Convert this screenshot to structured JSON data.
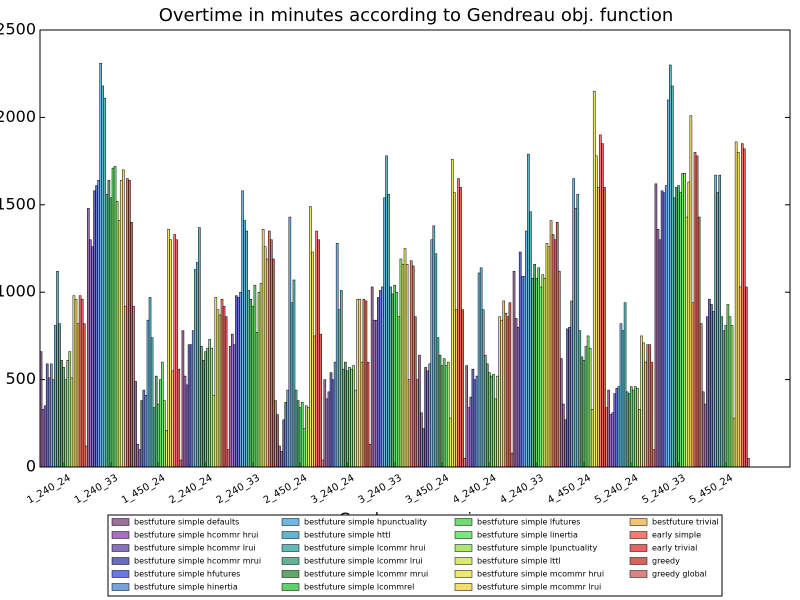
{
  "chart_data": {
    "type": "bar",
    "title": "Overtime in minutes according to Gendreau obj. function",
    "x_label": "Gendreau scenario",
    "categories": [
      "1_240_24",
      "1_240_33",
      "1_450_24",
      "2_240_24",
      "2_240_33",
      "2_450_24",
      "3_240_24",
      "3_240_33",
      "3_450_24",
      "4_240_24",
      "4_240_33",
      "4_450_24",
      "5_240_24",
      "5_240_33",
      "5_450_24"
    ],
    "ylim": [
      0,
      2500
    ],
    "yticks": [
      0,
      500,
      1000,
      1500,
      2000,
      2500
    ],
    "series": [
      {
        "name": "bestfuture simple defaults",
        "color": "#7b3f7b",
        "values": [
          660,
          1480,
          490,
          780,
          690,
          300,
          500,
          1030,
          640,
          580,
          1120,
          620,
          440,
          1620,
          430
        ]
      },
      {
        "name": "bestfuture simple hcommr hrui",
        "color": "#8e3ea8",
        "values": [
          330,
          1300,
          130,
          520,
          760,
          120,
          390,
          840,
          310,
          340,
          850,
          360,
          300,
          1360,
          360
        ]
      },
      {
        "name": "bestfuture simple hcommr lrui",
        "color": "#6240a8",
        "values": [
          350,
          1260,
          100,
          470,
          700,
          90,
          430,
          840,
          220,
          400,
          800,
          270,
          310,
          1300,
          860
        ]
      },
      {
        "name": "bestfuture simple hcommr mrui",
        "color": "#3a3aa8",
        "values": [
          590,
          1580,
          380,
          700,
          980,
          270,
          540,
          970,
          570,
          560,
          1230,
          790,
          420,
          1580,
          960
        ]
      },
      {
        "name": "bestfuture simple hfutures",
        "color": "#3a4adc",
        "values": [
          510,
          1610,
          440,
          700,
          970,
          370,
          500,
          1010,
          550,
          500,
          1090,
          800,
          450,
          1570,
          930
        ]
      },
      {
        "name": "bestfuture simple hinertia",
        "color": "#4a84d0",
        "values": [
          590,
          1640,
          410,
          780,
          1000,
          440,
          600,
          1030,
          590,
          520,
          1090,
          950,
          460,
          1610,
          890
        ]
      },
      {
        "name": "bestfuture simple hpunctuality",
        "color": "#3fa0dc",
        "values": [
          500,
          2310,
          840,
          1130,
          1580,
          1430,
          1280,
          1540,
          1300,
          1110,
          1350,
          1650,
          820,
          2100,
          1670
        ]
      },
      {
        "name": "bestfuture simple httl",
        "color": "#2f9cbc",
        "values": [
          810,
          2180,
          970,
          1170,
          1410,
          940,
          900,
          1780,
          1380,
          1140,
          1790,
          1480,
          780,
          2300,
          1570
        ]
      },
      {
        "name": "bestfuture simple lcommr hrui",
        "color": "#2fa0a0",
        "values": [
          1120,
          2110,
          740,
          1370,
          1350,
          1070,
          1010,
          1560,
          1220,
          900,
          1460,
          1560,
          940,
          2180,
          1670
        ]
      },
      {
        "name": "bestfuture simple lcommr lrui",
        "color": "#2f9a78",
        "values": [
          820,
          1560,
          340,
          690,
          1010,
          440,
          560,
          1030,
          740,
          640,
          1080,
          780,
          430,
          1540,
          860
        ]
      },
      {
        "name": "bestfuture simple lcommr mrui",
        "color": "#2f8a3a",
        "values": [
          610,
          1640,
          520,
          610,
          960,
          380,
          600,
          990,
          640,
          590,
          1160,
          630,
          420,
          1600,
          780
        ]
      },
      {
        "name": "bestfuture simple lcommrel",
        "color": "#2fc040",
        "values": [
          570,
          1540,
          360,
          660,
          920,
          340,
          550,
          1040,
          580,
          540,
          1080,
          610,
          460,
          1610,
          810
        ]
      },
      {
        "name": "bestfuture simple lfutures",
        "color": "#3ed03e",
        "values": [
          500,
          1710,
          500,
          680,
          1040,
          370,
          570,
          1000,
          620,
          520,
          1140,
          690,
          440,
          1570,
          930
        ]
      },
      {
        "name": "bestfuture simple linertia",
        "color": "#4ee050",
        "values": [
          610,
          1720,
          600,
          730,
          770,
          220,
          560,
          860,
          580,
          530,
          1030,
          750,
          460,
          1680,
          860
        ]
      },
      {
        "name": "bestfuture simple lpunctuality",
        "color": "#90e040",
        "values": [
          660,
          1520,
          380,
          680,
          1000,
          350,
          580,
          1190,
          600,
          390,
          1100,
          680,
          450,
          1680,
          810
        ]
      },
      {
        "name": "bestfuture simple lttl",
        "color": "#d0e040",
        "values": [
          510,
          1410,
          210,
          410,
          1050,
          340,
          440,
          1160,
          280,
          520,
          1080,
          330,
          330,
          1430,
          280
        ]
      },
      {
        "name": "bestfuture simple mcommr hrui",
        "color": "#e8e040",
        "values": [
          980,
          1640,
          1360,
          970,
          1360,
          1490,
          960,
          1250,
          1760,
          860,
          1280,
          2150,
          750,
          1630,
          1860
        ]
      },
      {
        "name": "bestfuture simple mcommr lrui",
        "color": "#f0d040",
        "values": [
          960,
          1700,
          1300,
          900,
          1260,
          1230,
          960,
          1160,
          1570,
          840,
          1260,
          1780,
          710,
          2010,
          1800
        ]
      },
      {
        "name": "bestfuture trivial",
        "color": "#f0b040",
        "values": [
          820,
          920,
          550,
          870,
          1190,
          750,
          600,
          500,
          900,
          950,
          1410,
          1600,
          600,
          940,
          1030
        ]
      },
      {
        "name": "early simple",
        "color": "#f05040",
        "values": [
          980,
          1650,
          1330,
          960,
          1350,
          1350,
          960,
          1180,
          1650,
          880,
          1330,
          1900,
          700,
          1800,
          1850
        ]
      },
      {
        "name": "early trivial",
        "color": "#e03030",
        "values": [
          960,
          1640,
          1300,
          920,
          1300,
          1300,
          950,
          1150,
          1600,
          860,
          1300,
          1850,
          700,
          1780,
          1820
        ]
      },
      {
        "name": "greedy",
        "color": "#c83020",
        "values": [
          820,
          1400,
          560,
          860,
          1190,
          760,
          600,
          860,
          900,
          940,
          1400,
          1600,
          600,
          1430,
          1030
        ]
      },
      {
        "name": "greedy global",
        "color": "#d05a5a",
        "values": [
          120,
          920,
          40,
          100,
          380,
          40,
          130,
          500,
          50,
          80,
          1120,
          340,
          100,
          820,
          50
        ]
      }
    ]
  }
}
